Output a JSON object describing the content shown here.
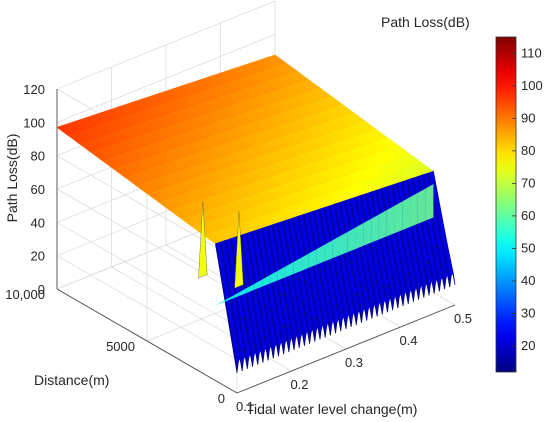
{
  "chart_data": {
    "type": "surface3d",
    "title": "",
    "xlabel": "Tidal water level change(m)",
    "ylabel": "Distance(m)",
    "zlabel": "Path Loss(dB)",
    "xlim": [
      0.1,
      0.5
    ],
    "ylim": [
      0,
      10000
    ],
    "zlim": [
      0,
      120
    ],
    "xticks": [
      "0.1",
      "0.2",
      "0.3",
      "0.4",
      "0.5"
    ],
    "yticks": [
      "0",
      "5000",
      "10,000"
    ],
    "zticks": [
      "0",
      "20",
      "40",
      "60",
      "80",
      "100",
      "120"
    ],
    "grid": true,
    "colorbar": {
      "label": "Path Loss(dB)",
      "range": [
        12,
        115
      ],
      "ticks": [
        "20",
        "30",
        "40",
        "50",
        "60",
        "70",
        "80",
        "90",
        "100",
        "110"
      ],
      "colormap": "jet"
    },
    "surface": {
      "series_name": "",
      "far_edge_loss_db": 97,
      "near_edge_far_distance_db": 80,
      "near_distance_oscillation_min_db": 12,
      "near_distance_oscillation_max_db": 72,
      "peak_loss_db": 100,
      "oscillation_cycles": 42
    }
  }
}
